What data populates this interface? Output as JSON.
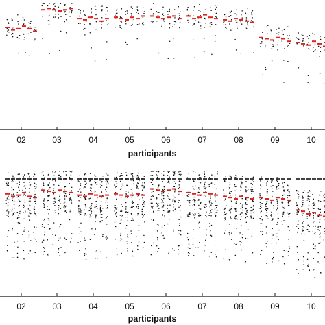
{
  "chart_data": [
    {
      "type": "scatter",
      "title": "",
      "xlabel": "participants",
      "ylabel": "",
      "categories": [
        "02",
        "03",
        "04",
        "05",
        "06",
        "07",
        "08",
        "09",
        "10"
      ],
      "ylim": [
        0,
        1
      ],
      "grid": false,
      "legend": "none",
      "colors": {
        "points": "#111111",
        "medians": "#e0201b",
        "axis": "#111111"
      },
      "median_levels": [
        0.8,
        0.95,
        0.88,
        0.88,
        0.89,
        0.89,
        0.87,
        0.72,
        0.68
      ],
      "median_marks": {
        "02": [
          0.81,
          0.79,
          0.8,
          0.82,
          0.8,
          0.78
        ],
        "03": [
          0.95,
          0.96,
          0.95,
          0.94,
          0.95,
          0.96
        ],
        "04": [
          0.88,
          0.87,
          0.89,
          0.88,
          0.86,
          0.88
        ],
        "05": [
          0.89,
          0.88,
          0.87,
          0.89,
          0.88,
          0.9
        ],
        "06": [
          0.9,
          0.89,
          0.88,
          0.89,
          0.9,
          0.88
        ],
        "07": [
          0.9,
          0.88,
          0.89,
          0.91,
          0.89,
          0.88
        ],
        "08": [
          0.87,
          0.86,
          0.88,
          0.87,
          0.86,
          0.85
        ],
        "09": [
          0.73,
          0.72,
          0.71,
          0.73,
          0.72,
          0.7
        ],
        "10": [
          0.69,
          0.68,
          0.67,
          0.7,
          0.68,
          0.66
        ]
      }
    },
    {
      "type": "scatter",
      "title": "",
      "xlabel": "participants",
      "ylabel": "",
      "categories": [
        "02",
        "03",
        "04",
        "05",
        "06",
        "07",
        "08",
        "09",
        "10"
      ],
      "ylim": [
        0,
        1
      ],
      "grid": false,
      "legend": "none",
      "colors": {
        "points": "#111111",
        "medians": "#e0201b",
        "caps": "#111111",
        "axis": "#111111"
      },
      "median_levels": [
        0.81,
        0.84,
        0.81,
        0.81,
        0.85,
        0.82,
        0.79,
        0.78,
        0.67
      ],
      "median_marks": {
        "02": [
          0.82,
          0.8,
          0.81,
          0.83,
          0.8,
          0.79
        ],
        "03": [
          0.85,
          0.84,
          0.83,
          0.85,
          0.84,
          0.83
        ],
        "04": [
          0.81,
          0.8,
          0.82,
          0.81,
          0.8,
          0.81
        ],
        "05": [
          0.82,
          0.81,
          0.8,
          0.81,
          0.82,
          0.81
        ],
        "06": [
          0.86,
          0.85,
          0.84,
          0.85,
          0.86,
          0.84
        ],
        "07": [
          0.83,
          0.82,
          0.81,
          0.83,
          0.82,
          0.81
        ],
        "08": [
          0.8,
          0.79,
          0.78,
          0.8,
          0.79,
          0.78
        ],
        "09": [
          0.79,
          0.78,
          0.77,
          0.79,
          0.78,
          0.77
        ],
        "10": [
          0.69,
          0.68,
          0.66,
          0.67,
          0.65,
          0.64
        ]
      }
    }
  ]
}
